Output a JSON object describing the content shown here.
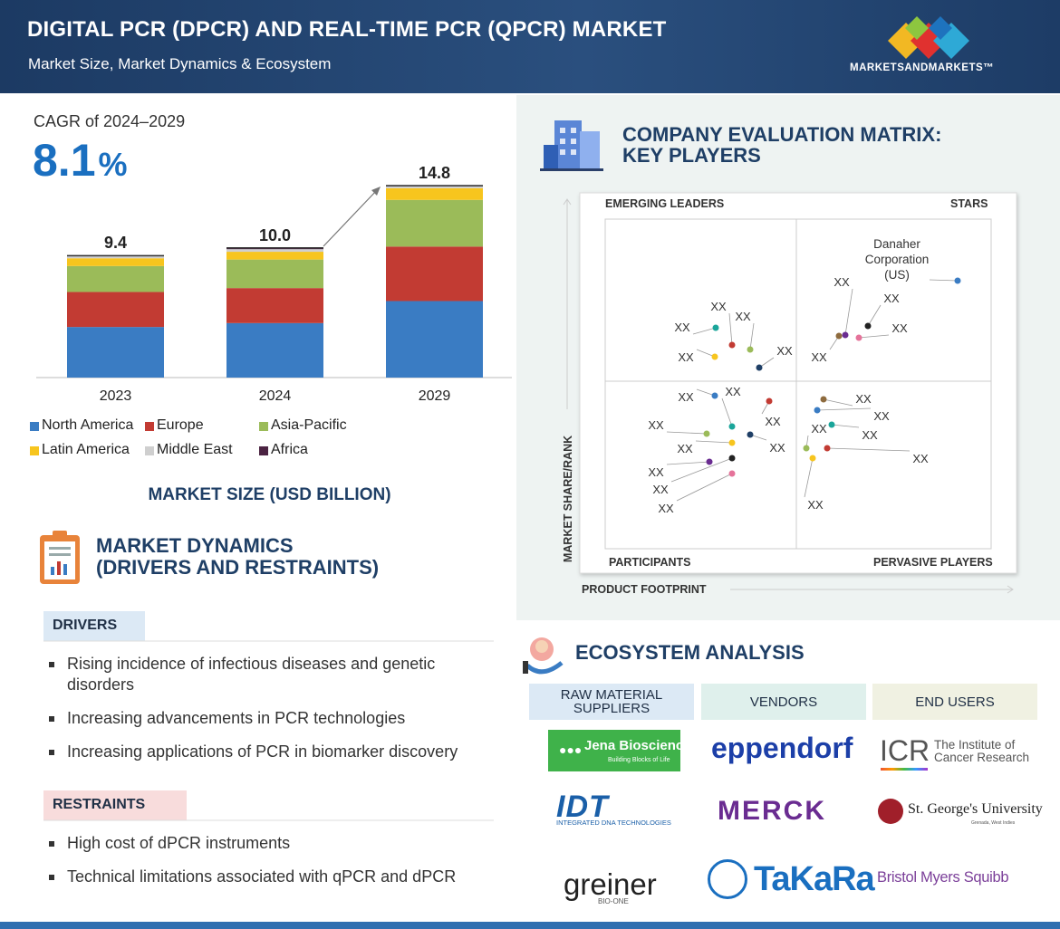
{
  "header": {
    "title": "DIGITAL PCR (DPCR) AND REAL-TIME PCR (QPCR) MARKET",
    "subtitle": "Market Size, Market Dynamics & Ecosystem",
    "brand": "MARKETSANDMARKETS™"
  },
  "cagr": {
    "label": "CAGR of 2024–2029",
    "value": "8.1",
    "unit": "%"
  },
  "chart_data": {
    "type": "bar",
    "stacked": true,
    "categories": [
      "2023",
      "2024",
      "2029"
    ],
    "series": [
      {
        "name": "North America",
        "color": "#3a7cc3",
        "values": [
          3.9,
          4.2,
          5.9
        ]
      },
      {
        "name": "Europe",
        "color": "#c23b33",
        "values": [
          2.7,
          2.7,
          4.2
        ]
      },
      {
        "name": "Asia-Pacific",
        "color": "#9bbb59",
        "values": [
          2.0,
          2.2,
          3.6
        ]
      },
      {
        "name": "Latin America",
        "color": "#f7c51e",
        "values": [
          0.6,
          0.6,
          0.9
        ]
      },
      {
        "name": "Middle East",
        "color": "#cfcfcf",
        "values": [
          0.15,
          0.2,
          0.15
        ]
      },
      {
        "name": "Africa",
        "color": "#4b2342",
        "values": [
          0.05,
          0.1,
          0.05
        ]
      }
    ],
    "value_labels": [
      "9.4",
      "10.0",
      "14.8"
    ],
    "caption": "MARKET SIZE (USD BILLION)"
  },
  "dynamics": {
    "title_line1": "MARKET DYNAMICS",
    "title_line2": "(DRIVERS AND RESTRAINTS)",
    "drivers": {
      "heading": "DRIVERS",
      "items": [
        "Rising incidence of infectious diseases and genetic disorders",
        "Increasing advancements in PCR technologies",
        "Increasing applications of PCR in biomarker discovery"
      ]
    },
    "restraints": {
      "heading": "RESTRAINTS",
      "items": [
        "High cost of dPCR instruments",
        "Technical limitations associated with qPCR and dPCR"
      ]
    }
  },
  "matrix": {
    "title_line1": "COMPANY EVALUATION MATRIX:",
    "title_line2": "KEY PLAYERS",
    "quadrants": {
      "top_left": "EMERGING LEADERS",
      "top_right": "STARS",
      "bottom_left": "PARTICIPANTS",
      "bottom_right": "PERVASIVE PLAYERS"
    },
    "y_axis_label": "MARKET SHARE/RANK",
    "x_axis_label": "PRODUCT FOOTPRINT",
    "points": [
      "Danaher Corporation (US)",
      "XX",
      "XX",
      "XX",
      "XX",
      "XX",
      "XX",
      "XX",
      "XX",
      "XX",
      "XX",
      "XX",
      "XX",
      "XX",
      "XX",
      "XX",
      "XX",
      "XX",
      "XX",
      "XX",
      "XX",
      "XX",
      "XX",
      "XX",
      "XX"
    ]
  },
  "ecosystem": {
    "title": "ECOSYSTEM ANALYSIS",
    "columns": [
      {
        "heading": "RAW MATERIAL SUPPLIERS",
        "logos": [
          {
            "name": "Jena Bioscience",
            "tagline": "Building Blocks of Life"
          },
          {
            "name": "IDT",
            "tagline": "INTEGRATED DNA TECHNOLOGIES"
          },
          {
            "name": "greiner",
            "tagline": "BIO-ONE"
          }
        ]
      },
      {
        "heading": "VENDORS",
        "logos": [
          {
            "name": "eppendorf"
          },
          {
            "name": "MERCK"
          },
          {
            "name": "TaKaRa"
          }
        ]
      },
      {
        "heading": "END USERS",
        "logos": [
          {
            "name": "ICR",
            "tagline": "The Institute of Cancer Research"
          },
          {
            "name": "St. George's University",
            "tagline": "Grenada, West Indies"
          },
          {
            "name": "Bristol Myers Squibb"
          }
        ]
      }
    ]
  }
}
